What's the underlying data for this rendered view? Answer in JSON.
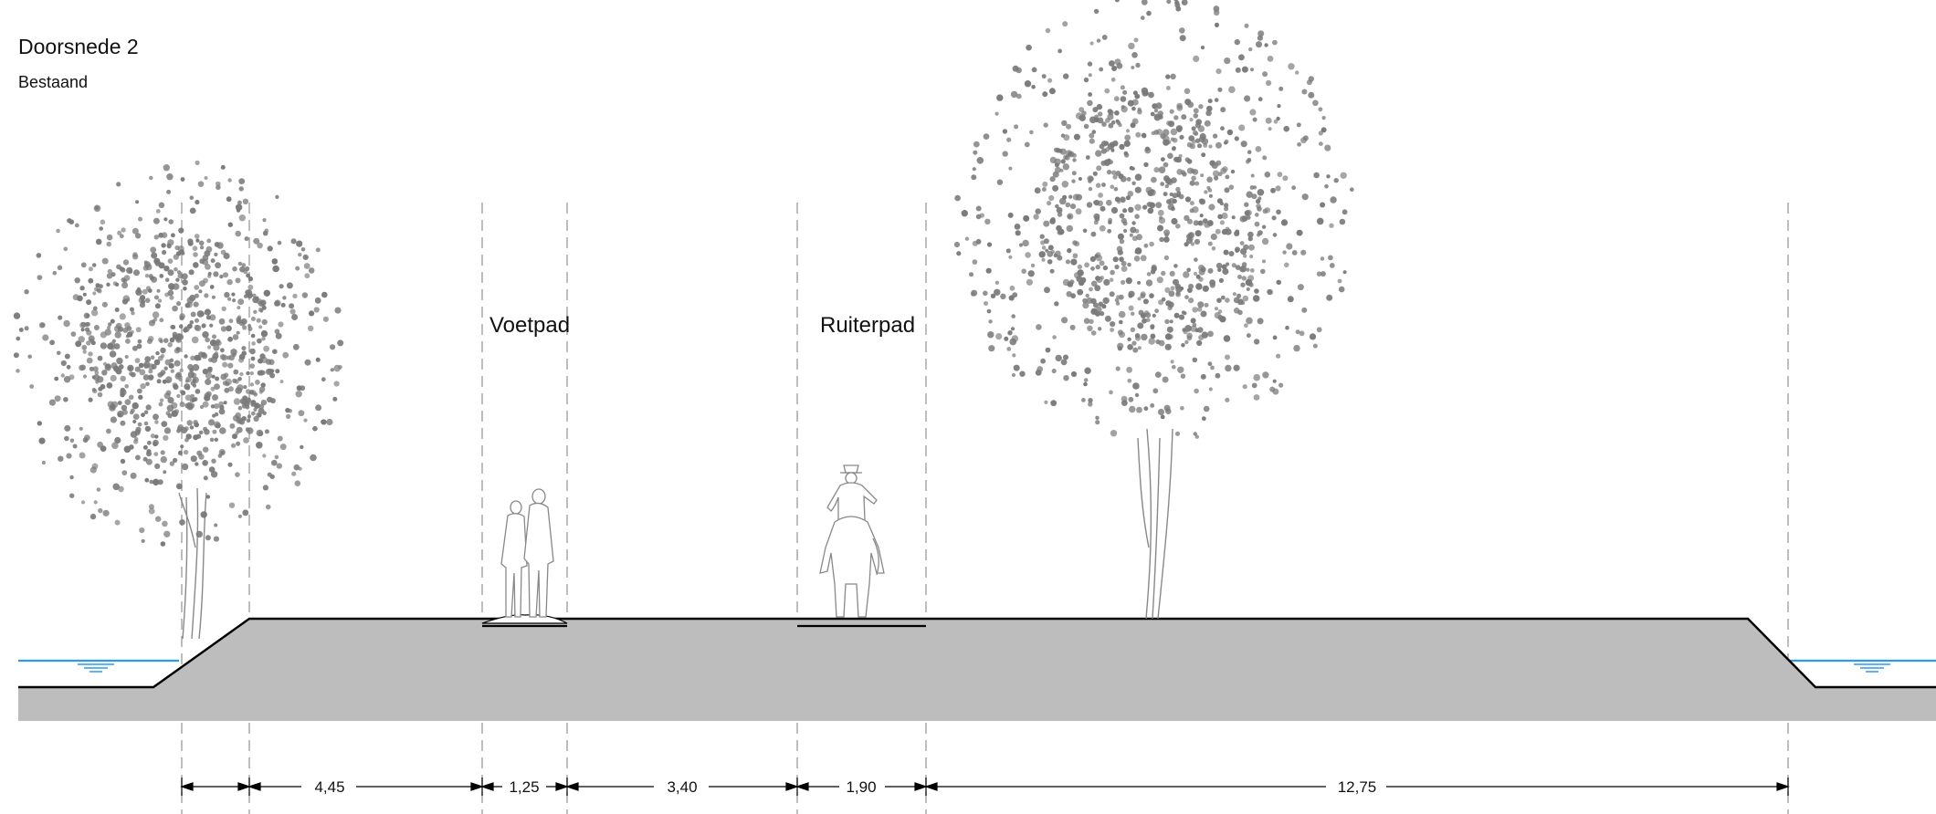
{
  "header": {
    "title": "Doorsnede 2",
    "subtitle": "Bestaand"
  },
  "labels": {
    "footpath": "Voetpad",
    "bridlepath": "Ruiterpad"
  },
  "dimensions": [
    {
      "value": "4,45"
    },
    {
      "value": "1,25"
    },
    {
      "value": "3,40"
    },
    {
      "value": "1,90"
    },
    {
      "value": "12,75"
    }
  ],
  "colors": {
    "ground": "#bdbdbd",
    "water": "#2b9af3",
    "foliage": "#7a7a7a",
    "line": "#000000",
    "dash": "#999999"
  },
  "icons": [
    "tree-icon",
    "pedestrians-icon",
    "horse-rider-icon",
    "water-symbol-icon"
  ]
}
